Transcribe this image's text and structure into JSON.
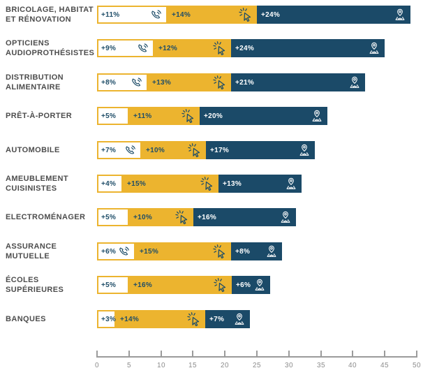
{
  "chart_data": {
    "type": "bar",
    "orientation": "horizontal",
    "stacked": true,
    "title": "",
    "xlabel": "",
    "ylabel": "",
    "xlim": [
      0,
      50
    ],
    "xticks": [
      0,
      5,
      10,
      15,
      20,
      25,
      30,
      35,
      40,
      45,
      50
    ],
    "categories": [
      [
        "BRICOLAGE, HABITAT",
        "ET RÉNOVATION"
      ],
      [
        "OPTICIENS",
        "AUDIOPROTHÉSISTES"
      ],
      [
        "DISTRIBUTION",
        "ALIMENTAIRE"
      ],
      [
        "PRÊT-À-PORTER"
      ],
      [
        "AUTOMOBILE"
      ],
      [
        "AMEUBLEMENT",
        "CUISINISTES"
      ],
      [
        "ELECTROMÉNAGER"
      ],
      [
        "ASSURANCE",
        "MUTUELLE"
      ],
      [
        "ÉCOLES",
        "SUPÉRIEURES"
      ],
      [
        "BANQUES"
      ]
    ],
    "series": [
      {
        "name": "phone",
        "icon": "phone-icon",
        "color": "#FFFFFF",
        "text_color": "#1E4D68",
        "icon_color": "#1E4D68",
        "values": [
          11,
          9,
          8,
          5,
          7,
          4,
          5,
          6,
          5,
          3
        ],
        "labels": [
          "+11%",
          "+9%",
          "+8%",
          "+5%",
          "+7%",
          "+4%",
          "+5%",
          "+6%",
          "+5%",
          "+3%"
        ],
        "icon_visible": [
          true,
          true,
          true,
          false,
          true,
          false,
          false,
          true,
          false,
          false
        ]
      },
      {
        "name": "click",
        "icon": "click-icon",
        "color": "#ECB42F",
        "text_color": "#1E4D68",
        "icon_color": "#1E4D68",
        "values": [
          14,
          12,
          13,
          11,
          10,
          15,
          10,
          15,
          16,
          14
        ],
        "labels": [
          "+14%",
          "+12%",
          "+13%",
          "+11%",
          "+10%",
          "+15%",
          "+10%",
          "+15%",
          "+16%",
          "+14%"
        ],
        "icon_visible": [
          true,
          true,
          true,
          true,
          true,
          true,
          true,
          true,
          true,
          true
        ]
      },
      {
        "name": "location",
        "icon": "location-icon",
        "color": "#1B4A68",
        "text_color": "#FFFFFF",
        "icon_color": "#FFFFFF",
        "values": [
          24,
          24,
          21,
          20,
          17,
          13,
          16,
          8,
          6,
          7
        ],
        "labels": [
          "+24%",
          "+24%",
          "+21%",
          "+20%",
          "+17%",
          "+13%",
          "+16%",
          "+8%",
          "+6%",
          "+7%"
        ],
        "icon_visible": [
          true,
          true,
          true,
          true,
          true,
          true,
          true,
          true,
          true,
          true
        ]
      }
    ]
  },
  "colors": {
    "segment_phone_bg": "#FFFFFF",
    "segment_click_bg": "#ECB42F",
    "segment_location_bg": "#1B4A68",
    "bar_border": "#ECB42F",
    "value_text_dark": "#1E4D68",
    "value_text_light": "#FFFFFF",
    "category_text": "#4D4D4D",
    "axis_line": "#9B9B9B",
    "axis_label": "#8C8C8C"
  }
}
